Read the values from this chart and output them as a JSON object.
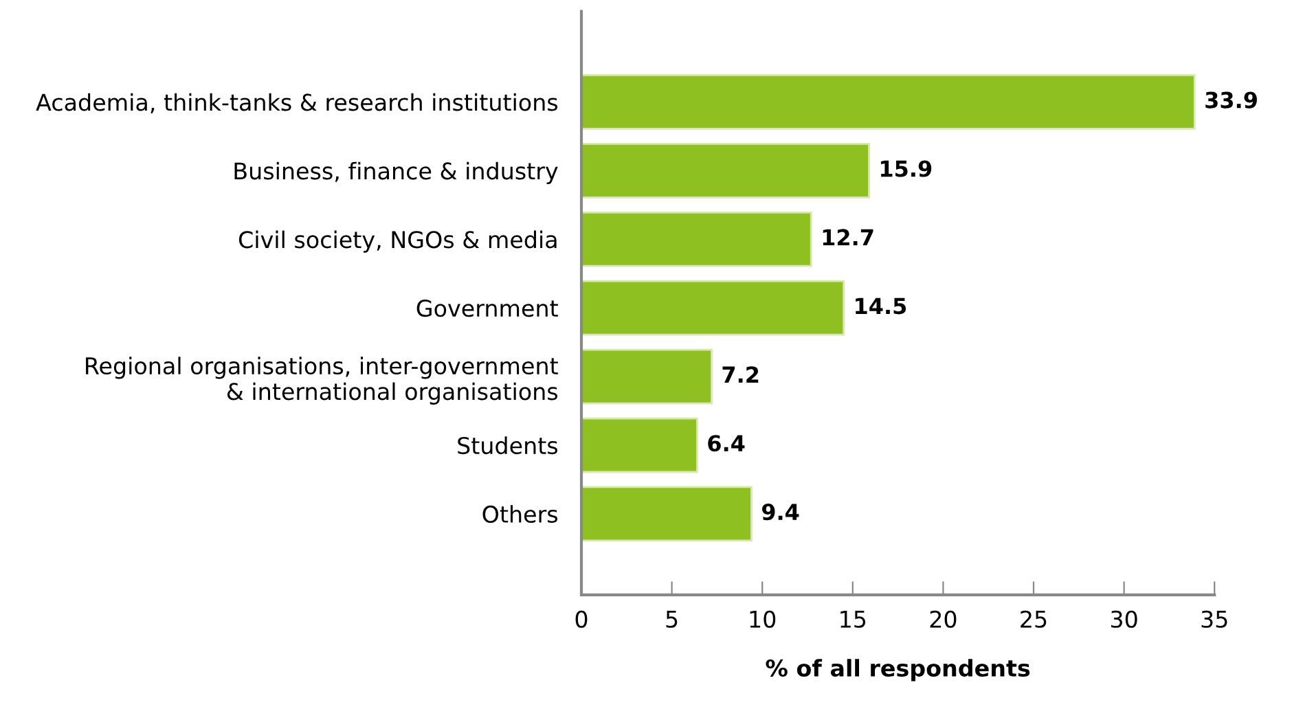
{
  "chart_data": {
    "type": "bar",
    "orientation": "horizontal",
    "xlabel": "% of all respondents",
    "categories": [
      "Academia, think-tanks & research institutions",
      "Business, finance & industry",
      "Civil society, NGOs & media",
      "Government",
      "Regional organisations, inter-government\n& international organisations",
      "Students",
      "Others"
    ],
    "values": [
      33.9,
      15.9,
      12.7,
      14.5,
      7.2,
      6.4,
      9.4
    ],
    "color": "#8fc021",
    "xlim": [
      0,
      35
    ],
    "xticks": [
      0,
      5,
      10,
      15,
      20,
      25,
      30,
      35
    ],
    "data_labels": true,
    "grid": false
  }
}
